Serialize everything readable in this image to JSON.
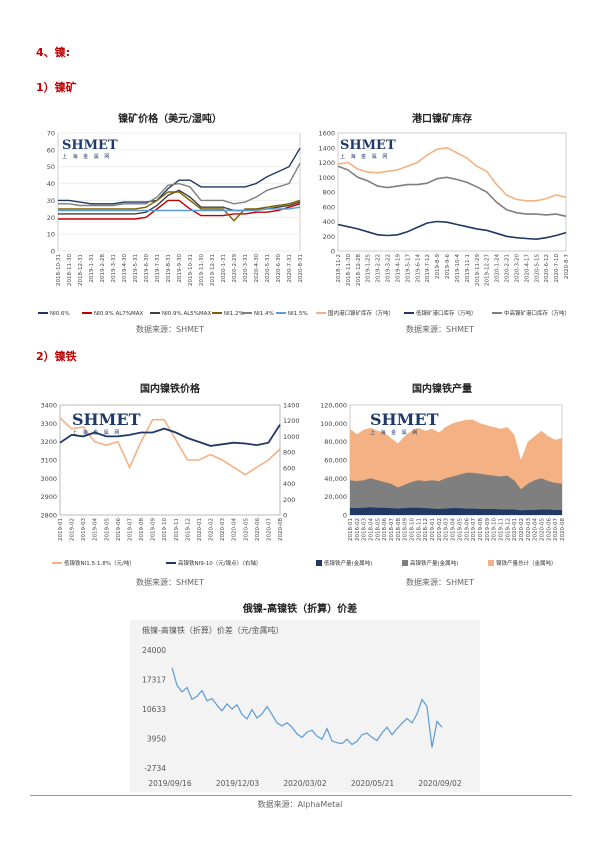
{
  "heading": "4、镍:",
  "sections": {
    "ore": "1）镍矿",
    "iron": "2）镍铁"
  },
  "logo": "SHMET",
  "logo_cn": "上 海 金 属 网",
  "sources": {
    "s1": "数据来源：SHMET",
    "s2": "数据来源：SHMET",
    "s3": "数据来源：SHMET",
    "s4": "数据来源：SHMET",
    "s5": "数据来源：AlphaMetal"
  },
  "colors": {
    "orange": "#f4b183",
    "navy": "#1f3864",
    "gray": "#7f7f7f",
    "blue": "#4472c4",
    "red": "#c00000",
    "olive": "#7f6000",
    "steel": "#5b9bd5"
  },
  "chart_data": [
    {
      "id": "ore_price",
      "type": "line",
      "title": "镍矿价格（美元/湿吨）",
      "ylim": [
        0,
        70
      ],
      "yticks": [
        "0",
        "10",
        "20",
        "30",
        "40",
        "50",
        "60",
        "70"
      ],
      "xticks": [
        "2018-10-31",
        "2018-11-30",
        "2018-12-31",
        "2019-1-31",
        "2019-2-28",
        "2019-3-31",
        "2019-4-30",
        "2019-5-31",
        "2019-6-30",
        "2019-7-31",
        "2019-8-31",
        "2019-9-30",
        "2019-10-31",
        "2019-11-30",
        "2019-12-31",
        "2020-1-31",
        "2020-2-29",
        "2020-3-31",
        "2020-4-30",
        "2020-5-31",
        "2020-6-30",
        "2020-7-31",
        "2020-8-31"
      ],
      "series": [
        {
          "name": "NI0.6%",
          "values": [
            30,
            30,
            29,
            28,
            28,
            28,
            29,
            29,
            29,
            30,
            37,
            42,
            42,
            38,
            38,
            38,
            38,
            38,
            40,
            44,
            47,
            50,
            61
          ]
        },
        {
          "name": "NI0.9% AL7%MAX",
          "values": [
            19,
            19,
            19,
            19,
            19,
            19,
            19,
            19,
            20,
            25,
            30,
            30,
            25,
            21,
            21,
            21,
            22,
            22,
            23,
            23,
            24,
            26,
            28
          ]
        },
        {
          "name": "NI0.9% AL5%MAX",
          "values": [
            22,
            22,
            22,
            22,
            22,
            22,
            22,
            22,
            23,
            27,
            33,
            36,
            32,
            26,
            26,
            26,
            24,
            24,
            25,
            25,
            26,
            27,
            29
          ]
        },
        {
          "name": "NI1.2%",
          "values": [
            25,
            25,
            25,
            25,
            25,
            25,
            25,
            25,
            26,
            30,
            35,
            35,
            30,
            25,
            25,
            25,
            18,
            25,
            25,
            26,
            27,
            28,
            30
          ]
        },
        {
          "name": "NI1.4%",
          "values": [
            28,
            28,
            27,
            27,
            27,
            27,
            28,
            28,
            28,
            32,
            39,
            40,
            38,
            30,
            30,
            30,
            28,
            29,
            32,
            36,
            38,
            40,
            52
          ]
        },
        {
          "name": "NI1.5%",
          "values": [
            24,
            24,
            24,
            24,
            24,
            24,
            24,
            24,
            24,
            24,
            24,
            24,
            24,
            24,
            24,
            24,
            24,
            24,
            24,
            25,
            25,
            25,
            26
          ]
        }
      ]
    },
    {
      "id": "port_stock",
      "type": "line",
      "title": "港口镍矿库存",
      "ylim": [
        0,
        1600
      ],
      "yticks": [
        "0",
        "200",
        "400",
        "600",
        "800",
        "1000",
        "1200",
        "1400",
        "1600"
      ],
      "xticks": [
        "2018-11-2",
        "2018-11-30",
        "2018-12-28",
        "2019-1-25",
        "2019-2-22",
        "2019-3-22",
        "2019-4-19",
        "2019-5-17",
        "2019-6-14",
        "2019-7-12",
        "2019-8-9",
        "2019-9-6",
        "2019-10-4",
        "2019-11-1",
        "2019-11-29",
        "2019-12-27",
        "2020-1-24",
        "2020-2-21",
        "2020-3-20",
        "2020-4-17",
        "2020-5-15",
        "2020-6-12",
        "2020-7-10",
        "2020-8-7"
      ],
      "series": [
        {
          "name": "国内港口镍矿库存（万吨）",
          "values": [
            1180,
            1200,
            1110,
            1070,
            1060,
            1080,
            1100,
            1150,
            1200,
            1300,
            1380,
            1400,
            1330,
            1260,
            1150,
            1080,
            900,
            760,
            700,
            680,
            680,
            710,
            760,
            730
          ]
        },
        {
          "name": "低镍矿港口库存（万吨）",
          "values": [
            360,
            330,
            300,
            260,
            220,
            210,
            220,
            260,
            320,
            380,
            400,
            390,
            360,
            330,
            300,
            280,
            240,
            200,
            180,
            170,
            160,
            180,
            210,
            250
          ]
        },
        {
          "name": "中高镍矿港口库存（万吨）",
          "values": [
            1150,
            1100,
            1000,
            950,
            880,
            860,
            880,
            900,
            900,
            920,
            980,
            1000,
            970,
            930,
            870,
            800,
            660,
            560,
            520,
            500,
            500,
            490,
            500,
            470
          ]
        }
      ]
    },
    {
      "id": "iron_price",
      "type": "line",
      "title": "国内镍铁价格",
      "ylim": [
        2800,
        3400
      ],
      "yticks": [
        "2800",
        "2900",
        "3000",
        "3100",
        "3200",
        "3300",
        "3400"
      ],
      "y2lim": [
        0,
        1400
      ],
      "y2ticks": [
        "0",
        "200",
        "400",
        "600",
        "800",
        "1000",
        "1200",
        "1400"
      ],
      "xticks": [
        "2019-01",
        "2019-02",
        "2019-03",
        "2019-04",
        "2019-05",
        "2019-06",
        "2019-07",
        "2019-08",
        "2019-09",
        "2019-10",
        "2019-11",
        "2019-12",
        "2020-01",
        "2020-02",
        "2020-03",
        "2020-04",
        "2020-05",
        "2020-06",
        "2020-07",
        "2020-08"
      ],
      "series": [
        {
          "name": "低镍铁NI1.5-1.8%（元/吨）",
          "axis": "left",
          "values": [
            3330,
            3270,
            3280,
            3200,
            3180,
            3200,
            3060,
            3200,
            3320,
            3320,
            3210,
            3100,
            3100,
            3130,
            3100,
            3060,
            3020,
            3060,
            3100,
            3160
          ]
        },
        {
          "name": "高镍铁NI9-10（元/镍点）（右轴）",
          "axis": "right",
          "values": [
            920,
            1020,
            1000,
            1050,
            1000,
            1000,
            1020,
            1050,
            1050,
            1100,
            1050,
            980,
            930,
            880,
            900,
            920,
            910,
            890,
            920,
            1150
          ]
        }
      ]
    },
    {
      "id": "iron_output",
      "type": "area",
      "title": "国内镍铁产量",
      "ylim": [
        0,
        120000
      ],
      "yticks": [
        "0",
        "20,000",
        "40,000",
        "60,000",
        "80,000",
        "100,000",
        "120,000"
      ],
      "xticks": [
        "2018-01",
        "2018-02",
        "2018-03",
        "2018-04",
        "2018-05",
        "2018-06",
        "2018-07",
        "2018-08",
        "2018-09",
        "2018-10",
        "2018-11",
        "2018-12",
        "2019-01",
        "2019-02",
        "2019-03",
        "2019-04",
        "2019-05",
        "2019-06",
        "2019-07",
        "2019-08",
        "2019-09",
        "2019-10",
        "2019-11",
        "2019-12",
        "2020-01",
        "2020-02",
        "2020-03",
        "2020-04",
        "2020-05",
        "2020-06",
        "2020-07",
        "2020-08"
      ],
      "series": [
        {
          "name": "低镍铁产量(金属吨)",
          "values": [
            8000,
            7500,
            8000,
            8500,
            8000,
            8000,
            7500,
            7000,
            7500,
            8000,
            8000,
            7500,
            7000,
            6500,
            7000,
            7500,
            7500,
            7000,
            7000,
            6500,
            6500,
            6500,
            6000,
            6000,
            6000,
            5000,
            5500,
            5500,
            6000,
            6000,
            5500,
            5500
          ]
        },
        {
          "name": "高镍铁产量(金属吨)",
          "values": [
            38000,
            37000,
            38000,
            40000,
            38000,
            36000,
            34000,
            30000,
            33000,
            36000,
            38000,
            37000,
            38000,
            37000,
            40000,
            42000,
            44000,
            46000,
            46000,
            45000,
            44000,
            43000,
            42000,
            43000,
            38000,
            28000,
            34000,
            38000,
            40000,
            37000,
            35000,
            34000
          ]
        },
        {
          "name": "镍铁产量总计（金属吨）",
          "values": [
            94000,
            88000,
            93000,
            95000,
            92000,
            90000,
            84000,
            78000,
            86000,
            92000,
            95000,
            92000,
            94000,
            90000,
            96000,
            100000,
            102000,
            104000,
            104000,
            100000,
            98000,
            96000,
            94000,
            96000,
            88000,
            60000,
            80000,
            86000,
            92000,
            86000,
            82000,
            84000
          ]
        }
      ]
    },
    {
      "id": "spread",
      "type": "line",
      "title": "俄镍-高镍铁（折算）价差",
      "subtitle": "俄镍-高镍铁（折算）价差（元/金属吨）",
      "ylim": [
        -2734,
        24000
      ],
      "yticks": [
        "24000",
        "17317",
        "10633",
        "3950",
        "-2734"
      ],
      "xticks": [
        "2019/09/16",
        "2019/12/03",
        "2020/03/02",
        "2020/05/21",
        "2020/09/02"
      ],
      "series": [
        {
          "name": "价差",
          "values": [
            20000,
            16000,
            14500,
            15500,
            12800,
            13500,
            14800,
            12500,
            13000,
            11500,
            10200,
            11800,
            10600,
            11600,
            9400,
            8400,
            10500,
            8600,
            9500,
            11200,
            9400,
            7500,
            6800,
            7500,
            6500,
            5000,
            4200,
            5400,
            5800,
            4500,
            3800,
            6200,
            3400,
            3000,
            2800,
            3800,
            2600,
            3300,
            4800,
            5200,
            4200,
            3500,
            5200,
            6500,
            4800,
            6200,
            7400,
            8500,
            7500,
            9500,
            12800,
            11200,
            1900,
            7800,
            6500
          ]
        }
      ]
    }
  ]
}
